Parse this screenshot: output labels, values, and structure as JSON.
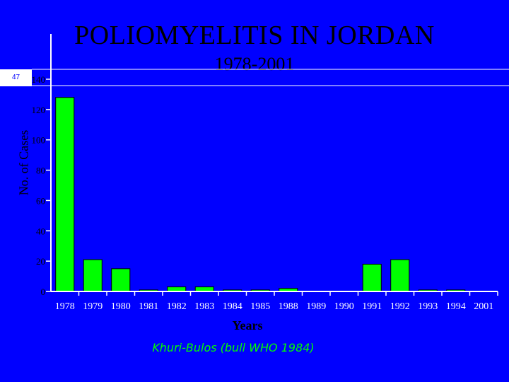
{
  "slide_number": "47",
  "chart_data": {
    "type": "bar",
    "title": "POLIOMYELITIS  IN JORDAN",
    "subtitle": "1978-2001",
    "xlabel": "Years",
    "ylabel": "No. of Cases",
    "source": "Khuri-Bulos (bull WHO 1984)",
    "categories": [
      "1978",
      "1979",
      "1980",
      "1981",
      "1982",
      "1983",
      "1984",
      "1985",
      "1988",
      "1989",
      "1990",
      "1991",
      "1992",
      "1993",
      "1994",
      "2001"
    ],
    "values": [
      128,
      21,
      15,
      1,
      3,
      3,
      1,
      1,
      2,
      0,
      0,
      18,
      21,
      1,
      1,
      0
    ],
    "yticks": [
      0,
      20,
      40,
      60,
      80,
      100,
      120,
      140
    ],
    "ylim": [
      0,
      140
    ],
    "colors": {
      "background": "#0000FF",
      "bar": "#00FF00",
      "bar_outline": "#000000",
      "text": "#000000",
      "axis": "#ffffff",
      "source": "#00FF00"
    }
  }
}
